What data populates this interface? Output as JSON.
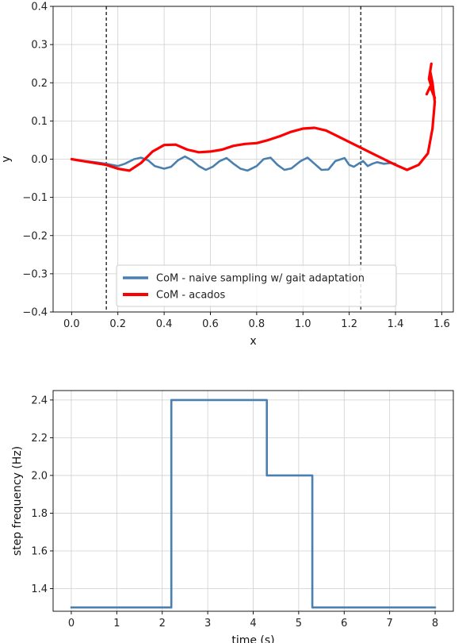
{
  "chart_data": [
    {
      "type": "line",
      "xlabel": "x",
      "ylabel": "y",
      "xlim": [
        -0.08,
        1.65
      ],
      "ylim": [
        -0.4,
        0.4
      ],
      "xticks": [
        0.0,
        0.2,
        0.4,
        0.6,
        0.8,
        1.0,
        1.2,
        1.4,
        1.6
      ],
      "xtick_labels": [
        "0.0",
        "0.2",
        "0.4",
        "0.6",
        "0.8",
        "1.0",
        "1.2",
        "1.4",
        "1.6"
      ],
      "yticks": [
        0.4,
        0.3,
        0.2,
        0.1,
        0.0,
        -0.1,
        -0.2,
        -0.3,
        -0.4
      ],
      "ytick_labels": [
        "0.4",
        "0.3",
        "0.2",
        "0.1",
        "0.0",
        "−0.1",
        "−0.2",
        "−0.3",
        "−0.4"
      ],
      "grid": true,
      "legend_position": "bottom-center",
      "vlines": [
        {
          "x": 0.15,
          "style": "dashed",
          "color": "#000000"
        },
        {
          "x": 1.25,
          "style": "dashed",
          "color": "#000000"
        }
      ],
      "series": [
        {
          "name": "CoM - naive sampling w/ gait adaptation",
          "color": "#4a7fb0",
          "x": [
            0.0,
            0.03,
            0.06,
            0.1,
            0.15,
            0.2,
            0.23,
            0.27,
            0.3,
            0.33,
            0.36,
            0.4,
            0.43,
            0.46,
            0.49,
            0.52,
            0.55,
            0.58,
            0.61,
            0.64,
            0.67,
            0.7,
            0.73,
            0.76,
            0.8,
            0.83,
            0.86,
            0.89,
            0.92,
            0.95,
            0.99,
            1.02,
            1.05,
            1.08,
            1.11,
            1.14,
            1.18,
            1.2,
            1.22,
            1.24,
            1.26,
            1.28,
            1.3,
            1.32,
            1.35,
            1.38,
            1.4
          ],
          "y": [
            0.0,
            -0.003,
            -0.005,
            -0.008,
            -0.012,
            -0.018,
            -0.012,
            0.0,
            0.004,
            -0.003,
            -0.018,
            -0.025,
            -0.02,
            -0.003,
            0.007,
            -0.003,
            -0.018,
            -0.028,
            -0.02,
            -0.005,
            0.003,
            -0.012,
            -0.025,
            -0.03,
            -0.018,
            0.0,
            0.004,
            -0.015,
            -0.028,
            -0.024,
            -0.005,
            0.004,
            -0.012,
            -0.028,
            -0.027,
            -0.005,
            0.003,
            -0.015,
            -0.02,
            -0.012,
            -0.005,
            -0.018,
            -0.012,
            -0.008,
            -0.012,
            -0.01,
            -0.012
          ]
        },
        {
          "name": "CoM - acados",
          "color": "#ff0000",
          "x": [
            0.0,
            0.05,
            0.1,
            0.15,
            0.2,
            0.25,
            0.3,
            0.35,
            0.4,
            0.45,
            0.5,
            0.55,
            0.6,
            0.65,
            0.7,
            0.75,
            0.8,
            0.85,
            0.9,
            0.95,
            1.0,
            1.05,
            1.1,
            1.15,
            1.2,
            1.25,
            1.3,
            1.35,
            1.4,
            1.45,
            1.5,
            1.54,
            1.56,
            1.57,
            1.56,
            1.55,
            1.555,
            1.545,
            1.57,
            1.55,
            1.535
          ],
          "y": [
            0.0,
            -0.005,
            -0.01,
            -0.015,
            -0.025,
            -0.03,
            -0.01,
            0.02,
            0.037,
            0.038,
            0.025,
            0.018,
            0.02,
            0.025,
            0.035,
            0.04,
            0.042,
            0.05,
            0.06,
            0.072,
            0.08,
            0.082,
            0.075,
            0.06,
            0.045,
            0.03,
            0.015,
            0.0,
            -0.015,
            -0.028,
            -0.015,
            0.015,
            0.08,
            0.15,
            0.2,
            0.23,
            0.25,
            0.21,
            0.16,
            0.19,
            0.17
          ]
        }
      ]
    },
    {
      "type": "line",
      "xlabel": "time (s)",
      "ylabel": "step frequency (Hz)",
      "xlim": [
        -0.4,
        8.4
      ],
      "ylim": [
        1.28,
        2.45
      ],
      "xticks": [
        0,
        1,
        2,
        3,
        4,
        5,
        6,
        7,
        8
      ],
      "xtick_labels": [
        "0",
        "1",
        "2",
        "3",
        "4",
        "5",
        "6",
        "7",
        "8"
      ],
      "yticks": [
        2.4,
        2.2,
        2.0,
        1.8,
        1.6,
        1.4
      ],
      "ytick_labels": [
        "2.4",
        "2.2",
        "2.0",
        "1.8",
        "1.6",
        "1.4"
      ],
      "grid": true,
      "step": true,
      "series": [
        {
          "color": "#4a7fb0",
          "x": [
            0.0,
            2.2,
            2.2,
            4.3,
            4.3,
            5.3,
            5.3,
            8.0
          ],
          "y": [
            1.3,
            1.3,
            2.4,
            2.4,
            2.0,
            2.0,
            1.3,
            1.3
          ]
        }
      ]
    }
  ]
}
